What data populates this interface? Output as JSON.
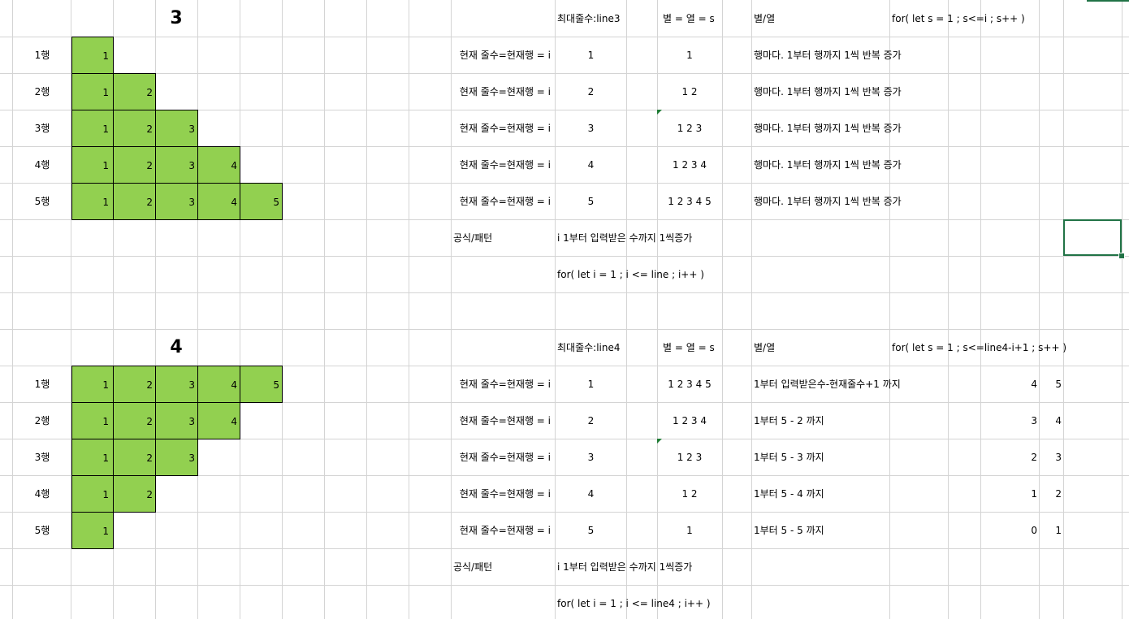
{
  "sections": [
    {
      "title": "3",
      "row_labels": [
        "1행",
        "2행",
        "3행",
        "4행",
        "5행"
      ],
      "triangle_rows": [
        [
          "1"
        ],
        [
          "1",
          "2"
        ],
        [
          "1",
          "2",
          "3"
        ],
        [
          "1",
          "2",
          "3",
          "4"
        ],
        [
          "1",
          "2",
          "3",
          "4",
          "5"
        ]
      ],
      "header": {
        "max_lines": "최대줄수:line3",
        "star_eq": "별 = 열 = s",
        "star_col": "별/열",
        "code": "for( let s = 1 ; s<=i ; s++ )"
      },
      "rows": [
        {
          "label": "현재 줄수=현재행 = i",
          "i": "1",
          "stars": "1",
          "desc": "행마다.  1부터 행까지 1씩 반복 증가"
        },
        {
          "label": "현재 줄수=현재행 = i",
          "i": "2",
          "stars": "1 2",
          "desc": "행마다.  1부터 행까지 1씩 반복 증가"
        },
        {
          "label": "현재 줄수=현재행 = i",
          "i": "3",
          "stars": "1 2 3",
          "desc": "행마다.  1부터 행까지 1씩 반복 증가"
        },
        {
          "label": "현재 줄수=현재행 = i",
          "i": "4",
          "stars": "1 2 3 4",
          "desc": "행마다.  1부터 행까지 1씩 반복 증가"
        },
        {
          "label": "현재 줄수=현재행 = i",
          "i": "5",
          "stars": "1 2 3 4 5",
          "desc": "행마다.  1부터 행까지 1씩 반복 증가"
        }
      ],
      "formula_label": "공식/패턴",
      "formula_desc": "i 1부터 입력받은 수까지 1씩증가",
      "formula_code": "for( let i = 1 ; i <= line ; i++ )"
    },
    {
      "title": "4",
      "row_labels": [
        "1행",
        "2행",
        "3행",
        "4행",
        "5행"
      ],
      "triangle_rows": [
        [
          "1",
          "2",
          "3",
          "4",
          "5"
        ],
        [
          "1",
          "2",
          "3",
          "4"
        ],
        [
          "1",
          "2",
          "3"
        ],
        [
          "1",
          "2"
        ],
        [
          "1"
        ]
      ],
      "header": {
        "max_lines": "최대줄수:line4",
        "star_eq": "별 = 열 = s",
        "star_col": "별/열",
        "code": "for( let s = 1 ; s<=line4-i+1 ; s++ )"
      },
      "rows": [
        {
          "label": "현재 줄수=현재행 = i",
          "i": "1",
          "stars": "1 2 3 4 5",
          "desc": "1부터 입력받은수-현재줄수+1 까지",
          "v1": "4",
          "v2": "5"
        },
        {
          "label": "현재 줄수=현재행 = i",
          "i": "2",
          "stars": "1 2 3 4",
          "desc": "1부터 5 - 2 까지",
          "v1": "3",
          "v2": "4"
        },
        {
          "label": "현재 줄수=현재행 = i",
          "i": "3",
          "stars": "1 2 3",
          "desc": "1부터 5 - 3 까지",
          "v1": "2",
          "v2": "3"
        },
        {
          "label": "현재 줄수=현재행 = i",
          "i": "4",
          "stars": "1 2",
          "desc": "1부터 5 - 4 까지",
          "v1": "1",
          "v2": "2"
        },
        {
          "label": "현재 줄수=현재행 = i",
          "i": "5",
          "stars": "1",
          "desc": "1부터 5 - 5 까지",
          "v1": "0",
          "v2": "1"
        }
      ],
      "formula_label": "공식/패턴",
      "formula_desc": "i 1부터 입력받은 수까지 1씩증가",
      "formula_code": "for( let i = 1 ; i <= line4 ; i++ )"
    }
  ],
  "colors": {
    "cell_fill": "#92d050",
    "grid_line": "#d4d4d4",
    "selection": "#217346"
  }
}
